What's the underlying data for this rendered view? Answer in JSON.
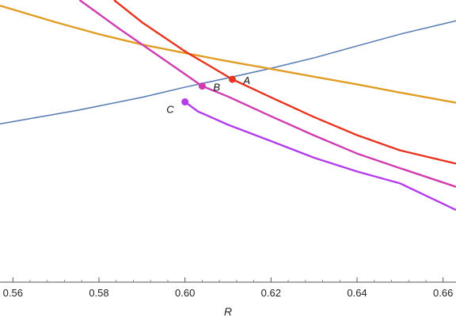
{
  "chart_data": {
    "type": "line",
    "title": "",
    "xlabel": "R",
    "ylabel": "",
    "xlim": [
      0.557,
      0.663
    ],
    "ylim": [
      0,
      1
    ],
    "grid": false,
    "x_ticks": [
      "0.56",
      "0.58",
      "0.60",
      "0.62",
      "0.64",
      "0.66"
    ],
    "x_tick_values": [
      0.56,
      0.58,
      0.6,
      0.62,
      0.64,
      0.66
    ],
    "series": [
      {
        "color": "#5e81b5",
        "points": [
          [
            0.557,
            0.561
          ],
          [
            0.575,
            0.609
          ],
          [
            0.59,
            0.655
          ],
          [
            0.6,
            0.691
          ],
          [
            0.61,
            0.724
          ],
          [
            0.62,
            0.758
          ],
          [
            0.63,
            0.795
          ],
          [
            0.64,
            0.837
          ],
          [
            0.65,
            0.879
          ],
          [
            0.663,
            0.926
          ]
        ]
      },
      {
        "color": "#e19c24",
        "points": [
          [
            0.557,
            0.98
          ],
          [
            0.57,
            0.921
          ],
          [
            0.58,
            0.879
          ],
          [
            0.59,
            0.842
          ],
          [
            0.6,
            0.812
          ],
          [
            0.61,
            0.783
          ],
          [
            0.62,
            0.756
          ],
          [
            0.63,
            0.728
          ],
          [
            0.64,
            0.701
          ],
          [
            0.65,
            0.672
          ],
          [
            0.663,
            0.636
          ]
        ]
      },
      {
        "color": "#e8341f",
        "points": [
          [
            0.5835,
            1.0
          ],
          [
            0.59,
            0.921
          ],
          [
            0.6,
            0.818
          ],
          [
            0.611,
            0.719
          ],
          [
            0.62,
            0.655
          ],
          [
            0.63,
            0.585
          ],
          [
            0.64,
            0.521
          ],
          [
            0.65,
            0.467
          ],
          [
            0.663,
            0.42
          ]
        ]
      },
      {
        "color": "#d03cb0",
        "points": [
          [
            0.5755,
            1.0
          ],
          [
            0.585,
            0.895
          ],
          [
            0.595,
            0.79
          ],
          [
            0.604,
            0.695
          ],
          [
            0.61,
            0.658
          ],
          [
            0.62,
            0.588
          ],
          [
            0.63,
            0.52
          ],
          [
            0.64,
            0.456
          ],
          [
            0.65,
            0.404
          ],
          [
            0.663,
            0.338
          ]
        ]
      },
      {
        "color": "#b33ded",
        "points": [
          [
            0.6,
            0.639
          ],
          [
            0.603,
            0.605
          ],
          [
            0.61,
            0.558
          ],
          [
            0.62,
            0.5
          ],
          [
            0.63,
            0.441
          ],
          [
            0.64,
            0.392
          ],
          [
            0.65,
            0.35
          ],
          [
            0.663,
            0.256
          ]
        ]
      }
    ],
    "markers": [
      {
        "label": "A",
        "x": 0.611,
        "y": 0.719,
        "color": "#e8341f"
      },
      {
        "label": "B",
        "x": 0.604,
        "y": 0.695,
        "color": "#d03cb0"
      },
      {
        "label": "C",
        "x": 0.6,
        "y": 0.639,
        "color": "#b33ded"
      }
    ]
  }
}
